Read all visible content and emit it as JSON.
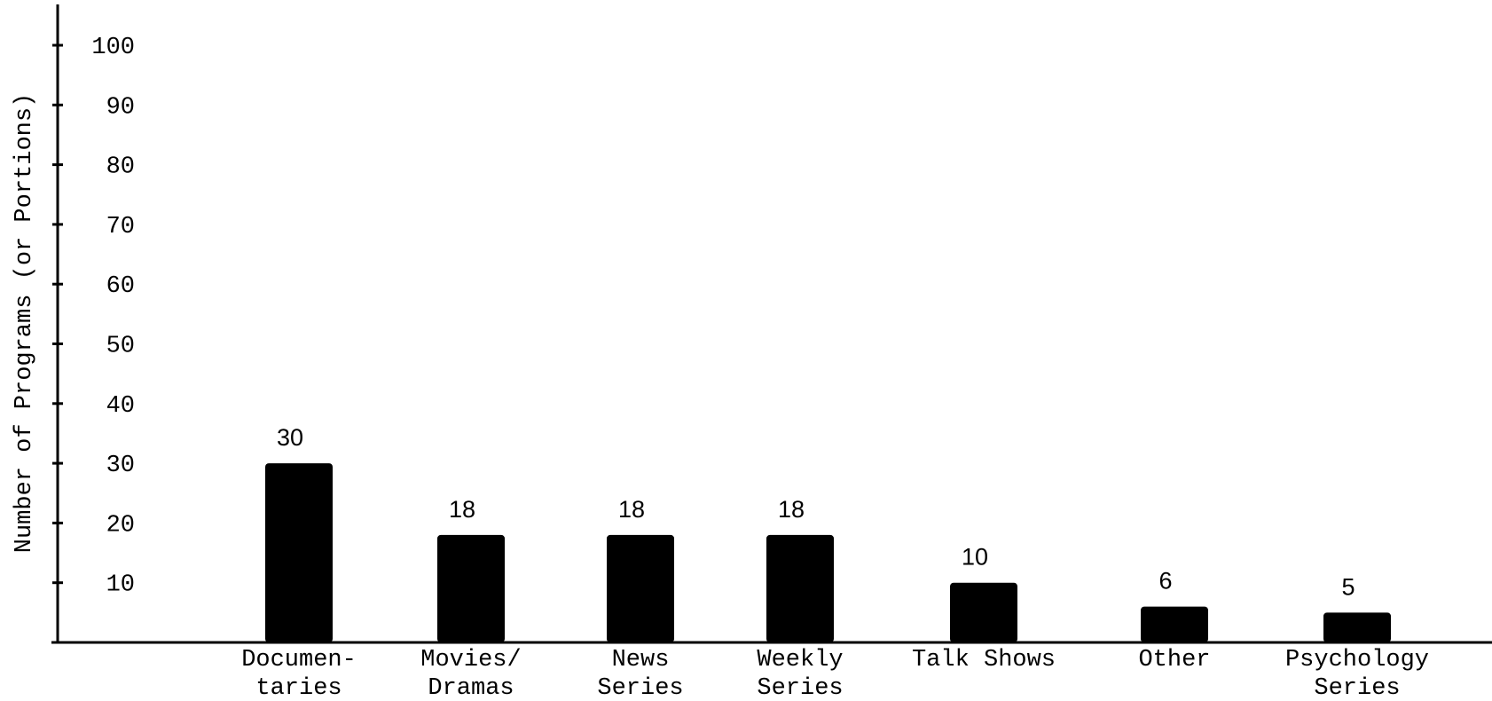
{
  "chart_data": {
    "type": "bar",
    "title": "",
    "xlabel": "",
    "ylabel": "Number of Programs (or Portions)",
    "ylim": [
      0,
      100
    ],
    "yticks": [
      10,
      20,
      30,
      40,
      50,
      60,
      70,
      80,
      90,
      100
    ],
    "grid": false,
    "categories": [
      [
        "Documen-",
        "taries"
      ],
      [
        "Movies/",
        "Dramas"
      ],
      [
        "News",
        "Series"
      ],
      [
        "Weekly",
        "Series"
      ],
      [
        "Talk Shows"
      ],
      [
        "Other"
      ],
      [
        "Psychology",
        "Series"
      ]
    ],
    "values": [
      30,
      18,
      18,
      18,
      10,
      6,
      5
    ],
    "bar_color": "#000000"
  }
}
